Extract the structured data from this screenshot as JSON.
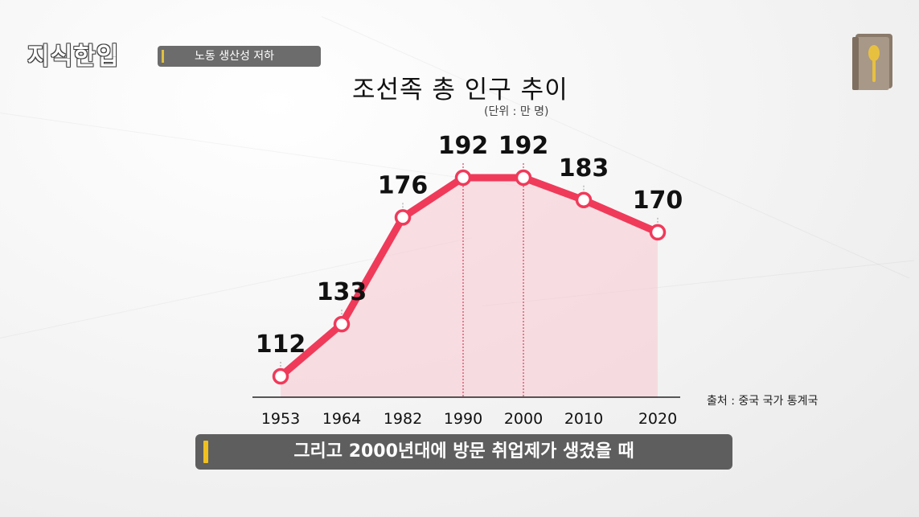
{
  "logo_text": "지식한입",
  "topic_label": "노동 생산성 저하",
  "subtitle": "그리고 2000년대에 방문 취업제가 생겼을 때",
  "icons": {
    "logo": "brand-logo",
    "book": "book-spoon-icon"
  },
  "colors": {
    "line": "#f03a5a",
    "fill": "#f7c9cf",
    "topic_bar": "#6c6c6c",
    "subtitle_bar": "#5e5e5e",
    "accent": "#f0c020"
  },
  "chart_data": {
    "type": "line",
    "title": "조선족 총 인구 추이",
    "unit": "(단위 : 만 명)",
    "source": "출처 : 중국 국가 통계국",
    "categories": [
      "1953",
      "1964",
      "1982",
      "1990",
      "2000",
      "2010",
      "2020"
    ],
    "values": [
      112,
      133,
      176,
      192,
      192,
      183,
      170
    ],
    "data_labels": [
      "112",
      "133",
      "176",
      "192",
      "192",
      "183",
      "170"
    ],
    "highlight": [
      "1990",
      "2000"
    ],
    "area_fill": true,
    "grid": false,
    "legend": "none"
  }
}
